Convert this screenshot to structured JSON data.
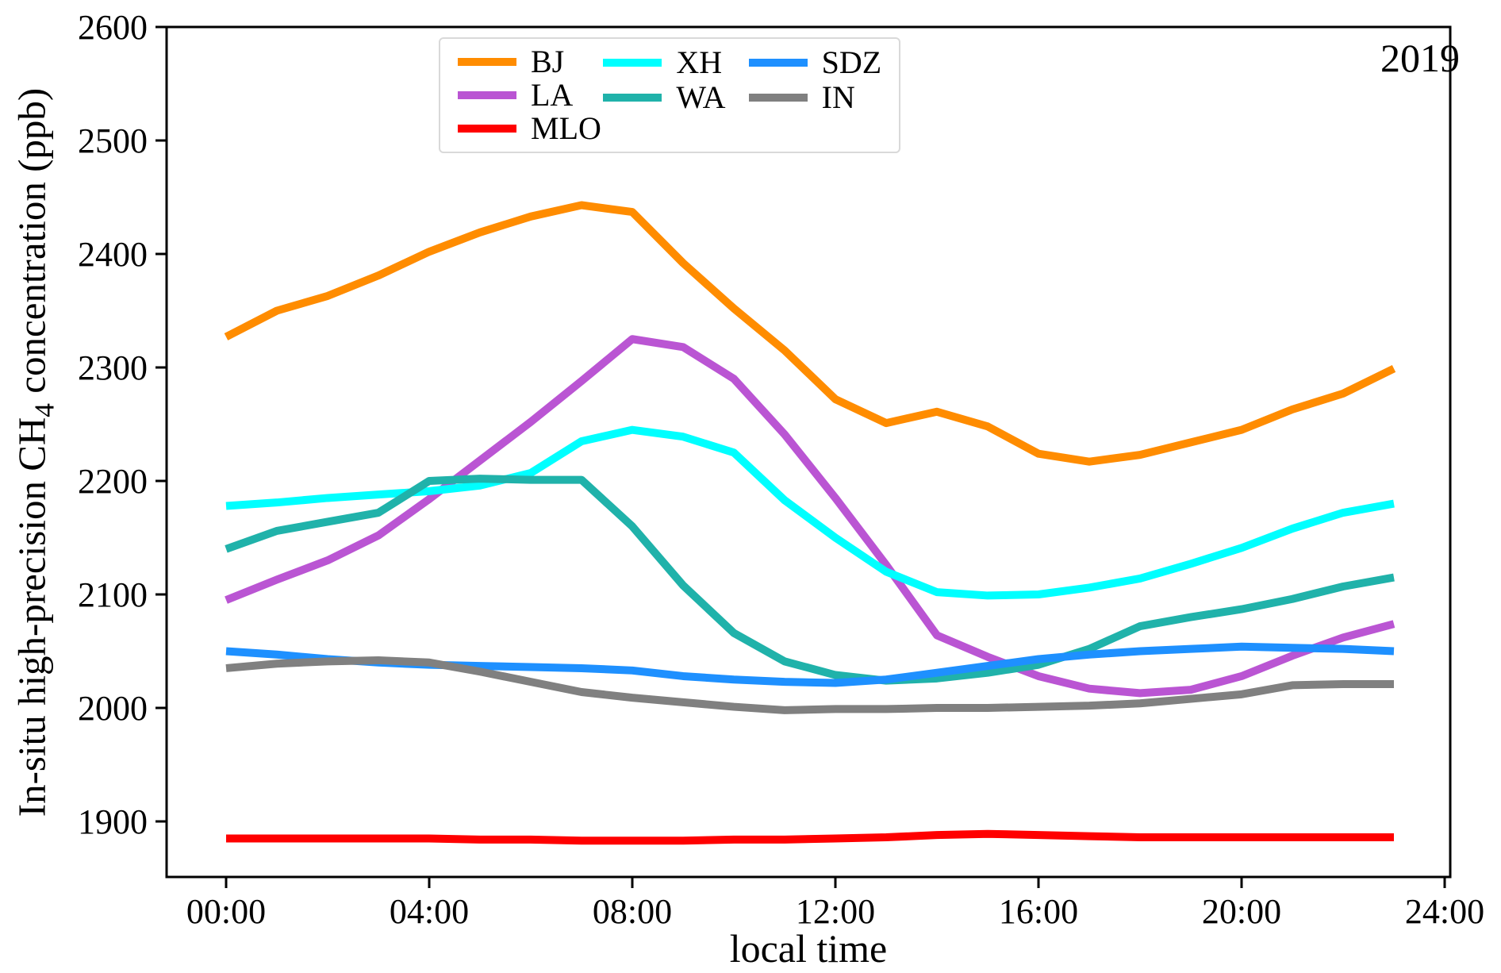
{
  "figure": {
    "year_annotation": "2019",
    "x_axis": {
      "label": "local time",
      "tick_labels": [
        "00:00",
        "04:00",
        "08:00",
        "12:00",
        "16:00",
        "20:00",
        "24:00"
      ],
      "tick_hours": [
        0,
        4,
        8,
        12,
        16,
        20,
        24
      ]
    },
    "y_axis": {
      "label_pre": "In-situ high-precision CH",
      "label_sub": "4",
      "label_post": " concentration (ppb)",
      "tick_values": [
        1900,
        2000,
        2100,
        2200,
        2300,
        2400,
        2500,
        2600
      ]
    }
  },
  "chart_data": {
    "type": "line",
    "title": "",
    "annotations": [
      "2019"
    ],
    "xlabel": "local time",
    "ylabel": "In-situ high-precision CH4 concentration (ppb)",
    "x_unit": "hour of day (local time)",
    "x": [
      0,
      1,
      2,
      3,
      4,
      5,
      6,
      7,
      8,
      9,
      10,
      11,
      12,
      13,
      14,
      15,
      16,
      17,
      18,
      19,
      20,
      21,
      22,
      23
    ],
    "x_tick_labels": [
      "00:00",
      "04:00",
      "08:00",
      "12:00",
      "16:00",
      "20:00",
      "24:00"
    ],
    "ylim": [
      1850,
      2600
    ],
    "xlim_hours": [
      -1.2,
      24.1
    ],
    "grid": false,
    "legend_position": "upper center",
    "legend_columns": [
      [
        "BJ",
        "LA",
        "MLO"
      ],
      [
        "XH",
        "WA"
      ],
      [
        "SDZ",
        "IN"
      ]
    ],
    "series": [
      {
        "name": "BJ",
        "color": "#FF8C00",
        "values": [
          2327,
          2350,
          2363,
          2381,
          2402,
          2419,
          2433,
          2443,
          2437,
          2392,
          2352,
          2315,
          2272,
          2251,
          2261,
          2248,
          2224,
          2217,
          2223,
          2234,
          2245,
          2263,
          2277,
          2299
        ]
      },
      {
        "name": "LA",
        "color": "#BA55D3",
        "values": [
          2095,
          2113,
          2130,
          2152,
          2184,
          2218,
          2252,
          2288,
          2325,
          2318,
          2290,
          2241,
          2185,
          2126,
          2064,
          2045,
          2028,
          2017,
          2013,
          2016,
          2028,
          2046,
          2062,
          2074
        ]
      },
      {
        "name": "MLO",
        "color": "#FF0000",
        "values": [
          1885,
          1885,
          1885,
          1885,
          1885,
          1884,
          1884,
          1883,
          1883,
          1883,
          1884,
          1884,
          1885,
          1886,
          1888,
          1889,
          1888,
          1887,
          1886,
          1886,
          1886,
          1886,
          1886,
          1886
        ]
      },
      {
        "name": "XH",
        "color": "#00FFFF",
        "values": [
          2178,
          2181,
          2185,
          2188,
          2191,
          2196,
          2207,
          2235,
          2245,
          2239,
          2225,
          2183,
          2150,
          2120,
          2102,
          2099,
          2100,
          2106,
          2114,
          2127,
          2141,
          2158,
          2172,
          2180
        ]
      },
      {
        "name": "WA",
        "color": "#20B2AA",
        "values": [
          2140,
          2156,
          2164,
          2172,
          2200,
          2202,
          2201,
          2201,
          2160,
          2108,
          2066,
          2041,
          2029,
          2024,
          2026,
          2031,
          2038,
          2052,
          2072,
          2080,
          2087,
          2096,
          2107,
          2115
        ]
      },
      {
        "name": "SDZ",
        "color": "#1E90FF",
        "values": [
          2050,
          2047,
          2043,
          2040,
          2038,
          2037,
          2036,
          2035,
          2033,
          2028,
          2025,
          2023,
          2022,
          2025,
          2031,
          2037,
          2043,
          2047,
          2050,
          2052,
          2054,
          2053,
          2052,
          2050
        ]
      },
      {
        "name": "IN",
        "color": "#808080",
        "values": [
          2035,
          2039,
          2041,
          2042,
          2040,
          2032,
          2023,
          2014,
          2009,
          2005,
          2001,
          1998,
          1999,
          1999,
          2000,
          2000,
          2001,
          2002,
          2004,
          2008,
          2012,
          2020,
          2021,
          2021
        ]
      }
    ]
  }
}
